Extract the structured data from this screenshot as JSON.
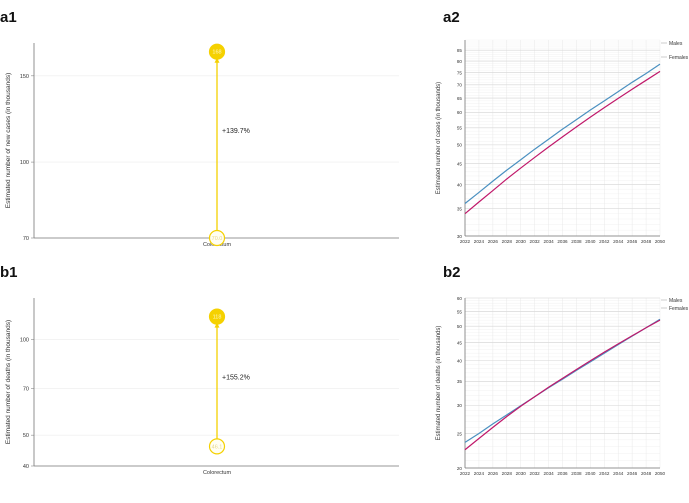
{
  "chart_data": [
    {
      "panel": "a1",
      "type": "scatter",
      "ylabel": "Estimated number of new cases (in thousands)",
      "categories": [
        "Colorectum"
      ],
      "yticks": [
        70,
        100,
        150
      ],
      "log_y": true,
      "ylim": [
        70,
        175
      ],
      "points": [
        {
          "label": "70.0",
          "value": 70.0
        },
        {
          "label": "168",
          "value": 168
        }
      ],
      "annotation": "+139.7%",
      "color": "#f5d100"
    },
    {
      "panel": "a2",
      "type": "line",
      "ylabel": "Estimated number of cases (in thousands)",
      "x": [
        2022,
        2024,
        2026,
        2028,
        2030,
        2032,
        2034,
        2036,
        2038,
        2040,
        2042,
        2044,
        2046,
        2048,
        2050
      ],
      "xlim": [
        2022,
        2050
      ],
      "log_y": true,
      "ylim": [
        30,
        90
      ],
      "yticks": [
        30,
        35,
        40,
        45,
        50,
        55,
        60,
        65,
        70,
        75,
        80,
        85
      ],
      "series": [
        {
          "name": "Males",
          "color": "#4a90c0",
          "values": [
            36.0,
            38.3,
            40.8,
            43.4,
            46.0,
            48.8,
            51.6,
            54.6,
            57.6,
            60.8,
            64.0,
            67.4,
            71.0,
            74.6,
            78.6
          ]
        },
        {
          "name": "Females",
          "color": "#c0186a",
          "values": [
            34.0,
            36.3,
            38.7,
            41.3,
            43.9,
            46.6,
            49.4,
            52.3,
            55.3,
            58.4,
            61.6,
            64.9,
            68.3,
            71.8,
            75.5
          ]
        }
      ]
    },
    {
      "panel": "b1",
      "type": "scatter",
      "ylabel": "Estimated number of deaths (in thousands)",
      "categories": [
        "Colorectum"
      ],
      "yticks": [
        40,
        50,
        70,
        100
      ],
      "log_y": true,
      "ylim": [
        40,
        135
      ],
      "points": [
        {
          "label": "46.1",
          "value": 46.1
        },
        {
          "label": "118",
          "value": 118
        }
      ],
      "annotation": "+155.2%",
      "color": "#f5d100"
    },
    {
      "panel": "b2",
      "type": "line",
      "ylabel": "Estimated number of deaths (in thousands)",
      "x": [
        2022,
        2024,
        2026,
        2028,
        2030,
        2032,
        2034,
        2036,
        2038,
        2040,
        2042,
        2044,
        2046,
        2048,
        2050
      ],
      "xlim": [
        2022,
        2050
      ],
      "log_y": true,
      "ylim": [
        20,
        60
      ],
      "yticks": [
        20,
        25,
        30,
        35,
        40,
        45,
        50,
        55,
        60
      ],
      "series": [
        {
          "name": "Males",
          "color": "#4a90c0",
          "values": [
            23.6,
            25.0,
            26.6,
            28.2,
            29.9,
            31.7,
            33.6,
            35.5,
            37.6,
            39.7,
            42.0,
            44.4,
            46.9,
            49.5,
            52.3
          ]
        },
        {
          "name": "Females",
          "color": "#c0186a",
          "values": [
            22.5,
            24.2,
            26.0,
            27.9,
            29.8,
            31.7,
            33.7,
            35.7,
            37.8,
            40.0,
            42.3,
            44.6,
            47.0,
            49.5,
            52.0
          ]
        }
      ]
    }
  ],
  "panels": [
    "a1",
    "a2",
    "b1",
    "b2"
  ]
}
